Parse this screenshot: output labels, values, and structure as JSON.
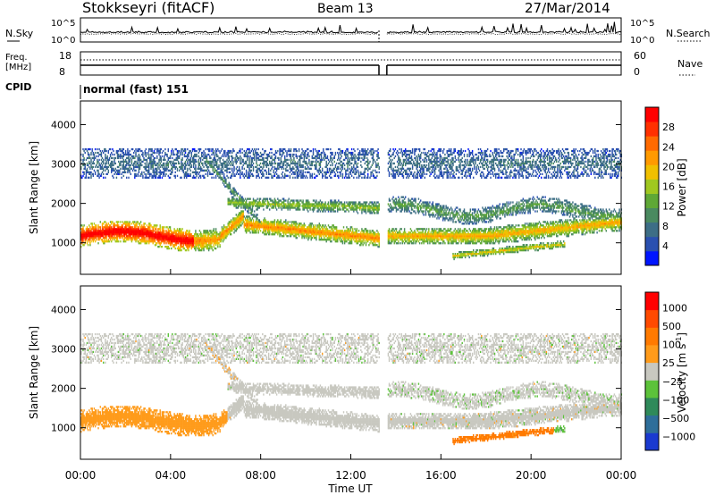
{
  "header": {
    "title": "Stokkseyri (fitACF)",
    "beam": "Beam 13",
    "date": "27/Mar/2014"
  },
  "status_panels": {
    "nsky_label": "N.Sky",
    "nsearch_label": "N.Search",
    "noise_ticks_left": [
      "10^5",
      "10^0"
    ],
    "noise_ticks_right": [
      "10^5",
      "10^0"
    ],
    "freq_label_1": "Freq.",
    "freq_label_2": "[MHz]",
    "freq_ticks": [
      "18",
      "8"
    ],
    "nave_label": "Nave",
    "nave_ticks": [
      "60",
      "0"
    ],
    "cpid_label": "CPID",
    "cpid_text": "normal (fast) 151"
  },
  "chart_data": [
    {
      "type": "heatmap",
      "name": "power",
      "ylabel": "Slant Range [km]",
      "yticks": [
        "1000",
        "2000",
        "3000",
        "4000"
      ],
      "ylim": [
        200,
        4600
      ],
      "xlim_hours": [
        0,
        24
      ],
      "data_gap_hours": [
        13.25,
        13.6
      ],
      "colorbar": {
        "label": "Power [dB]",
        "ticks": [
          "4",
          "8",
          "12",
          "16",
          "20",
          "24",
          "28"
        ],
        "colors": [
          "#0015ff",
          "#2a50b0",
          "#3d6e86",
          "#4a8a60",
          "#5fa836",
          "#a0c820",
          "#f0c000",
          "#ff9a00",
          "#ff6a00",
          "#ff3000",
          "#ff0000"
        ]
      }
    },
    {
      "type": "heatmap",
      "name": "velocity",
      "ylabel": "Slant Range [km]",
      "yticks": [
        "1000",
        "2000",
        "3000",
        "4000"
      ],
      "ylim": [
        200,
        4600
      ],
      "xlim_hours": [
        0,
        24
      ],
      "data_gap_hours": [
        13.25,
        13.6
      ],
      "colorbar": {
        "label": "Velocity [m s",
        "label_sup": "-1",
        "label_end": "]",
        "ticks": [
          "1000",
          "500",
          "100",
          "25",
          "−25",
          "−100",
          "−500",
          "−1000"
        ],
        "colors": [
          "#1a3ad0",
          "#2e6e9a",
          "#2f8a5a",
          "#5cc23a",
          "#c8c8c0",
          "#ff9b1a",
          "#ff7a00",
          "#ff4a00",
          "#ff0000"
        ]
      }
    }
  ],
  "xaxis": {
    "ticks": [
      "00:00",
      "04:00",
      "08:00",
      "12:00",
      "16:00",
      "20:00",
      "00:00"
    ],
    "label": "Time UT"
  }
}
